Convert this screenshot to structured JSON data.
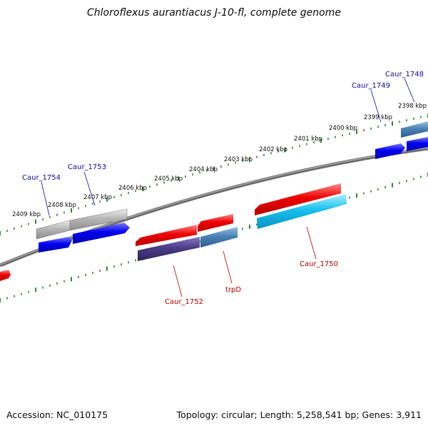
{
  "title": "Chloroflexus aurantiacus J-10-fl, complete genome",
  "footer": {
    "accession": "Accession: NC_010175",
    "summary": "Topology: circular; Length: 5,258,541 bp; Genes: 3,911"
  },
  "colors": {
    "backbone": "#7a7a7a",
    "tick": "#1f7a1f",
    "label_blue": "#1010b0",
    "label_red": "#c00000"
  },
  "kbp_ticks": [
    "2409 kbp",
    "2408 kbp",
    "2407 kbp",
    "2406 kbp",
    "2405 kbp",
    "2404 kbp",
    "2403 kbp",
    "2402 kbp",
    "2401 kbp",
    "2400 kbp",
    "2399 kbp",
    "2398 kbp"
  ],
  "gene_labels": [
    "Caur_1754",
    "Caur_1753",
    "Caur_1749",
    "Caur_1748",
    "Caur_1752",
    "trpD",
    "Caur_1750"
  ]
}
